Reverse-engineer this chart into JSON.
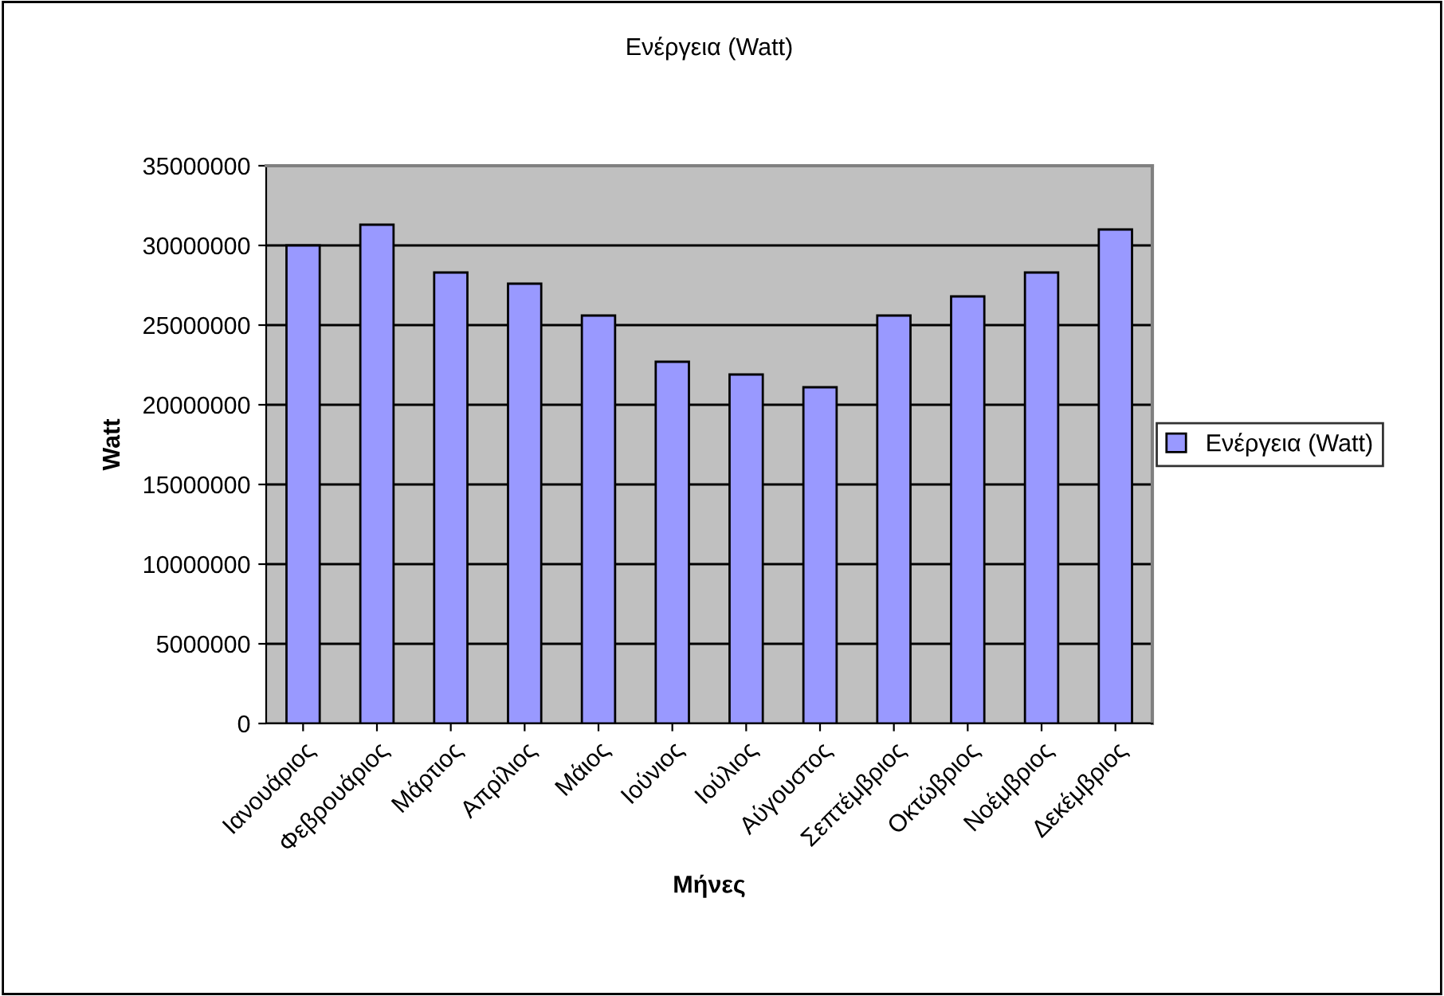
{
  "chart_data": {
    "type": "bar",
    "title": "Ενέργεια (Watt)",
    "xlabel": "Μήνες",
    "ylabel": "Watt",
    "categories": [
      "Ιανουάριος",
      "Φεβρουάριος",
      "Μάρτιος",
      "Απρίλιος",
      "Μάιος",
      "Ιούνιος",
      "Ιούλιος",
      "Αύγουστος",
      "Σεπτέμβριος",
      "Οκτώβριος",
      "Νοέμβριος",
      "Δεκέμβριος"
    ],
    "series": [
      {
        "name": "Ενέργεια (Watt)",
        "color": "#9999ff",
        "values": [
          30000000,
          31300000,
          28300000,
          27600000,
          25600000,
          22700000,
          21900000,
          21100000,
          25600000,
          26800000,
          28300000,
          31000000
        ]
      }
    ],
    "ylim": [
      0,
      35000000
    ],
    "yticks": [
      0,
      5000000,
      10000000,
      15000000,
      20000000,
      25000000,
      30000000,
      35000000
    ],
    "grid": "y",
    "legend": "right"
  }
}
